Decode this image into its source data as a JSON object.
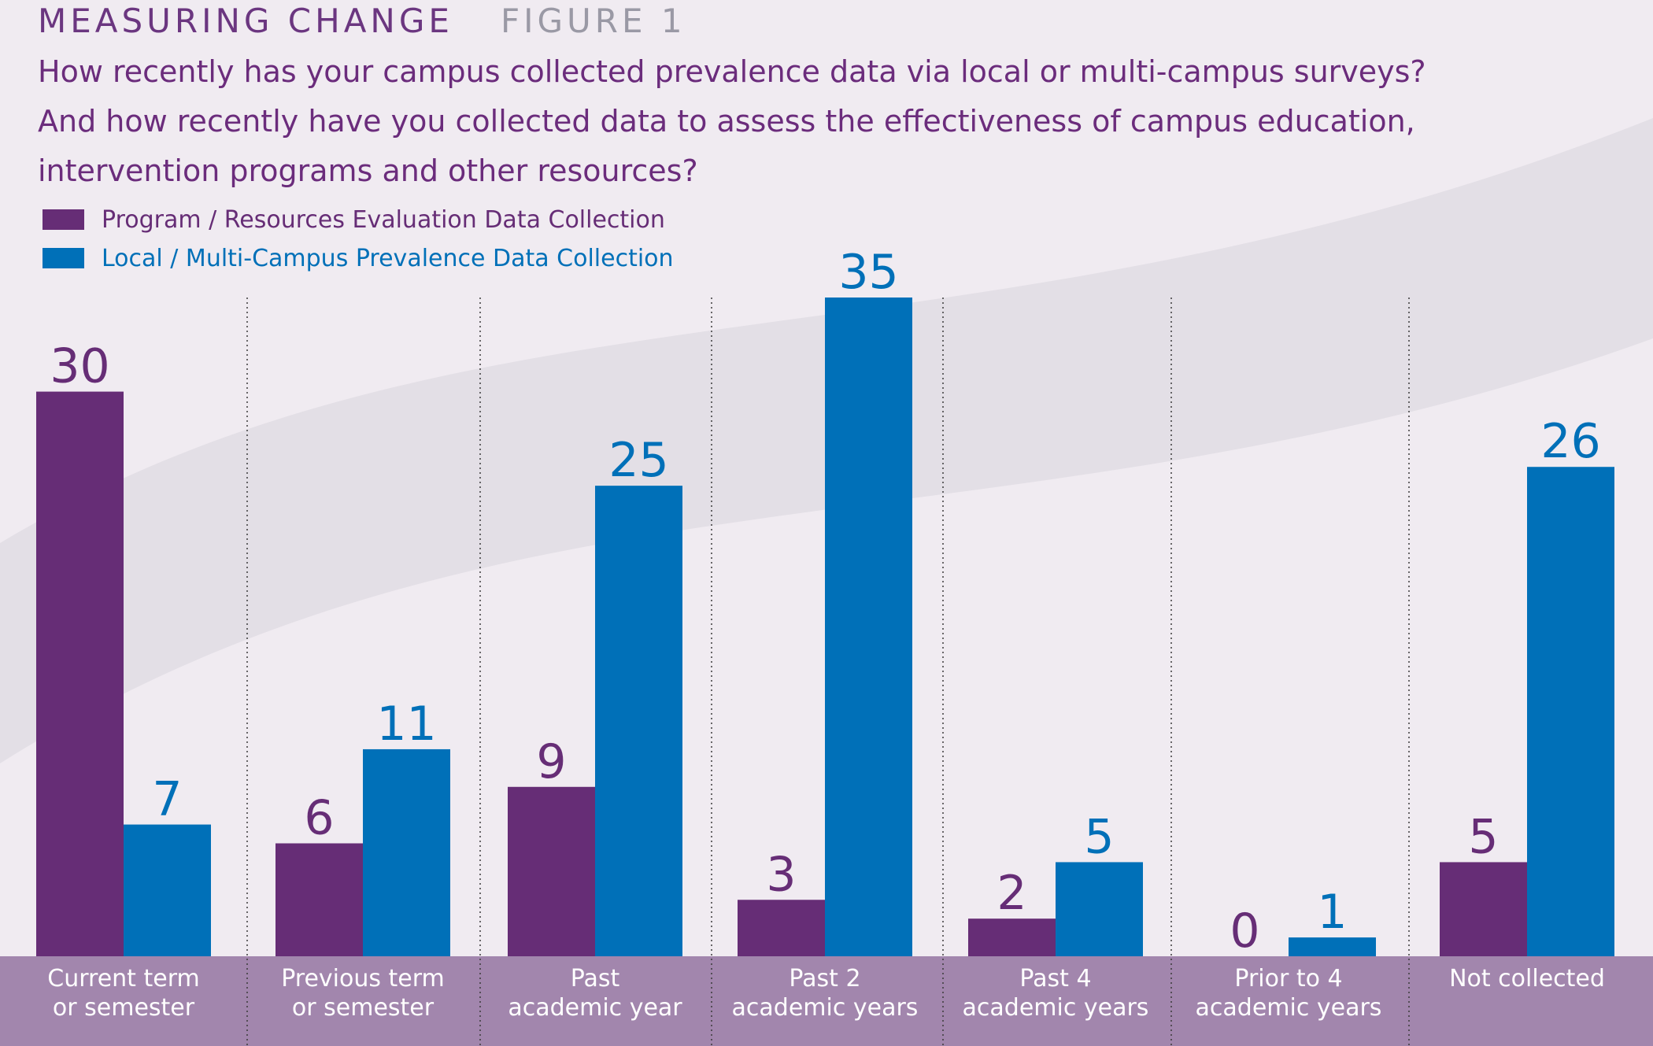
{
  "header": {
    "kicker": "MEASURING CHANGE",
    "figure_label": "FIGURE 1",
    "question_lines": [
      "How recently has your campus collected prevalence data via local or multi-campus surveys?",
      "And how recently have you collected data to assess the effectiveness of campus education,",
      "intervention programs and other resources?"
    ]
  },
  "legend": [
    {
      "label": "Program / Resources Evaluation Data Collection",
      "color": "#662d76"
    },
    {
      "label": "Local / Multi-Campus Prevalence Data Collection",
      "color": "#0070b8"
    }
  ],
  "colors": {
    "background": "#f0ebf1",
    "swoosh": "#e3dfe6",
    "category_band": "#a286ad",
    "category_text": "#ffffff",
    "program": "#662d76",
    "prevalence": "#0070b8"
  },
  "chart_data": {
    "type": "bar",
    "categories": [
      [
        "Current term",
        "or semester"
      ],
      [
        "Previous term",
        "or semester"
      ],
      [
        "Past",
        "academic year"
      ],
      [
        "Past 2",
        "academic years"
      ],
      [
        "Past 4",
        "academic years"
      ],
      [
        "Prior to 4",
        "academic years"
      ],
      [
        "Not collected"
      ]
    ],
    "series": [
      {
        "name": "Program / Resources Evaluation Data Collection",
        "color": "#662d76",
        "values": [
          30,
          6,
          9,
          3,
          2,
          0,
          5
        ]
      },
      {
        "name": "Local / Multi-Campus Prevalence Data Collection",
        "color": "#0070b8",
        "values": [
          7,
          11,
          25,
          35,
          5,
          1,
          26
        ]
      }
    ],
    "ylim": [
      0,
      35
    ],
    "data_labels": true,
    "grid": false,
    "legend_position": "top-left"
  }
}
